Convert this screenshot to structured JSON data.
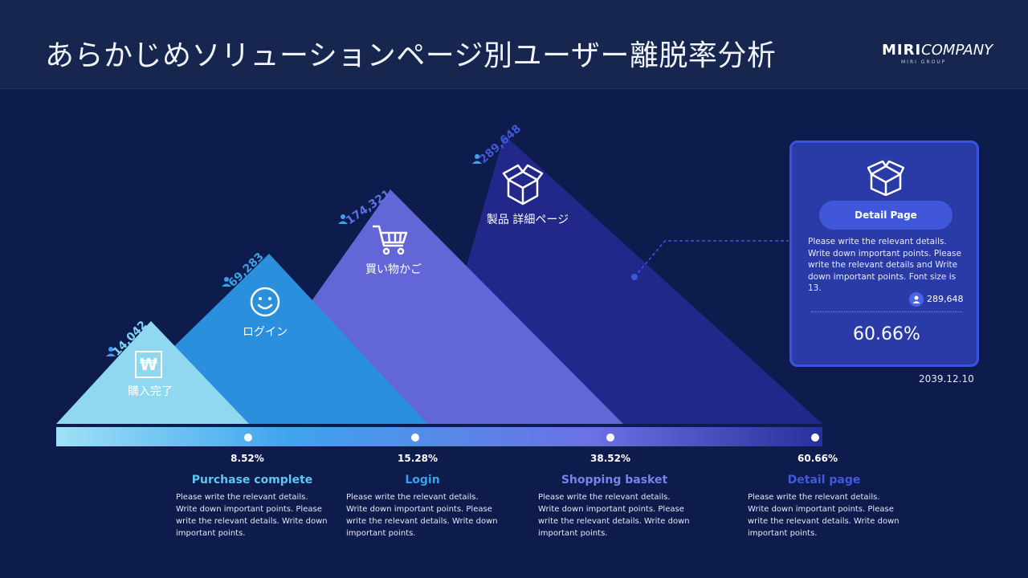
{
  "header": {
    "title": "あらかじめソリューションページ別ユーザー離脱率分析",
    "logo_main_bold": "MIRI",
    "logo_main_rest": "COMPANY",
    "logo_sub": "MIRI GROUP"
  },
  "colors": {
    "background": "#0e1b4d",
    "purchase": "#8fd8f0",
    "login": "#2a8fdc",
    "basket": "#6366d6",
    "detail": "#22288a"
  },
  "chart_data": {
    "type": "area",
    "title": "",
    "stages": [
      {
        "key": "purchase",
        "icon_label": "購入完了",
        "icon": "won-icon",
        "users": "14,042",
        "percent": "8.52%",
        "value": 14042
      },
      {
        "key": "login",
        "icon_label": "ログイン",
        "icon": "smile-icon",
        "users": "69,283",
        "percent": "15.28%",
        "value": 69283
      },
      {
        "key": "basket",
        "icon_label": "買い物かご",
        "icon": "cart-icon",
        "users": "174,321",
        "percent": "38.52%",
        "value": 174321
      },
      {
        "key": "detail",
        "icon_label": "製品 詳細ページ",
        "icon": "box-icon",
        "users": "289,648",
        "percent": "60.66%",
        "value": 289648
      }
    ]
  },
  "steps": [
    {
      "title": "Purchase complete",
      "color": "#5fc6ef",
      "desc": "Please write the relevant details. Write down important points. Please write the relevant details. Write down important points."
    },
    {
      "title": "Login",
      "color": "#3aa2ea",
      "desc": "Please write the relevant details. Write down important points. Please write the relevant details. Write down important points."
    },
    {
      "title": "Shopping basket",
      "color": "#7b82ea",
      "desc": "Please write the relevant details. Write down important points. Please write the relevant details. Write down important points."
    },
    {
      "title": "Detail page",
      "color": "#4459d8",
      "desc": "Please write the relevant details. Write down important points. Please write the relevant details. Write down important points."
    }
  ],
  "card": {
    "button": "Detail Page",
    "desc": "Please write the relevant details. Write down important points. Please write the relevant details and Write down important points. Font size is 13.",
    "users": "289,648",
    "percent": "60.66%",
    "date": "2039.12.10"
  }
}
